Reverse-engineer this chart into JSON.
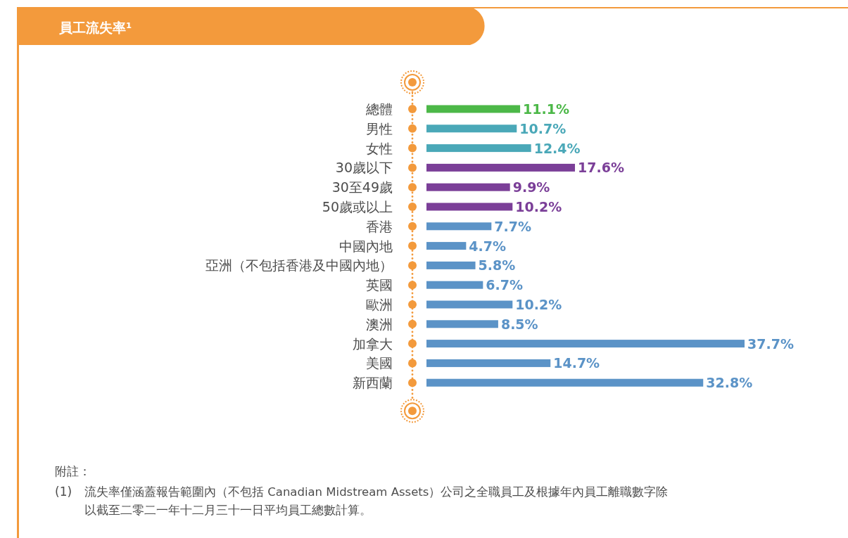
{
  "chart_data": {
    "type": "bar",
    "orientation": "horizontal",
    "title": "員工流失率¹",
    "categories": [
      "總體",
      "男性",
      "女性",
      "30歲以下",
      "30至49歲",
      "50歲或以上",
      "香港",
      "中國內地",
      "亞洲（不包括香港及中國內地）",
      "英國",
      "歐洲",
      "澳洲",
      "加拿大",
      "美國",
      "新西蘭"
    ],
    "values": [
      11.1,
      10.7,
      12.4,
      17.6,
      9.9,
      10.2,
      7.7,
      4.7,
      5.8,
      6.7,
      10.2,
      8.5,
      37.7,
      14.7,
      32.8
    ],
    "value_labels": [
      "11.1%",
      "10.7%",
      "12.4%",
      "17.6%",
      "9.9%",
      "10.2%",
      "7.7%",
      "4.7%",
      "5.8%",
      "6.7%",
      "10.2%",
      "8.5%",
      "37.7%",
      "14.7%",
      "32.8%"
    ],
    "colors": [
      "#4cb848",
      "#4aa8b8",
      "#4aa8b8",
      "#7b3f98",
      "#7b3f98",
      "#7b3f98",
      "#5b93c7",
      "#5b93c7",
      "#5b93c7",
      "#5b93c7",
      "#5b93c7",
      "#5b93c7",
      "#5b93c7",
      "#5b93c7",
      "#5b93c7"
    ],
    "annotations": [
      "附註：",
      "(1) 流失率僅涵蓋報告範圍內（不包括 Canadian Midstream Assets）公司之全職員工及根據年內員工離職數字除以截至二零二一年十二月三十一日平均員工總數計算。"
    ]
  }
}
